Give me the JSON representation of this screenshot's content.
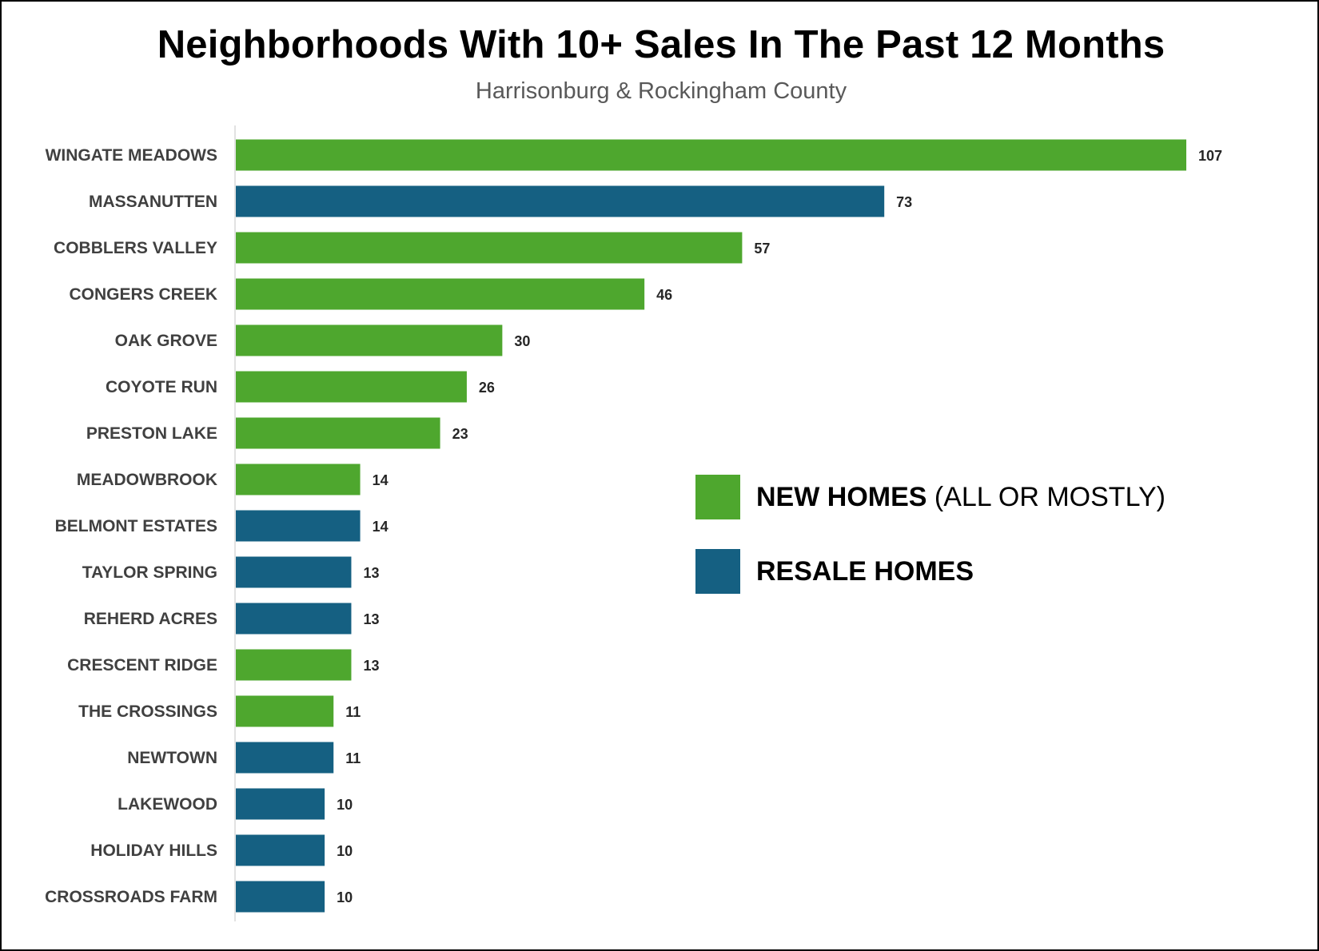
{
  "title": "Neighborhoods With 10+ Sales In The Past 12 Months",
  "subtitle": "Harrisonburg & Rockingham County",
  "legend": {
    "new": {
      "bold": "NEW HOMES",
      "normal": " (ALL OR MOSTLY)",
      "color": "#4EA72E"
    },
    "resale": {
      "bold": "RESALE HOMES",
      "normal": "",
      "color": "#156082"
    }
  },
  "chart_data": {
    "type": "bar",
    "orientation": "horizontal",
    "title": "Neighborhoods With 10+ Sales In The Past 12 Months",
    "subtitle": "Harrisonburg & Rockingham County",
    "xlabel": "",
    "ylabel": "",
    "xlim": [
      0,
      107
    ],
    "grid": false,
    "legend_position": "right-middle",
    "categories": [
      "WINGATE MEADOWS",
      "MASSANUTTEN",
      "COBBLERS VALLEY",
      "CONGERS CREEK",
      "OAK GROVE",
      "COYOTE RUN",
      "PRESTON LAKE",
      "MEADOWBROOK",
      "BELMONT ESTATES",
      "TAYLOR SPRING",
      "REHERD ACRES",
      "CRESCENT RIDGE",
      "THE CROSSINGS",
      "NEWTOWN",
      "LAKEWOOD",
      "HOLIDAY HILLS",
      "CROSSROADS FARM"
    ],
    "values": [
      107,
      73,
      57,
      46,
      30,
      26,
      23,
      14,
      14,
      13,
      13,
      13,
      11,
      11,
      10,
      10,
      10
    ],
    "types": [
      "new",
      "resale",
      "new",
      "new",
      "new",
      "new",
      "new",
      "new",
      "resale",
      "resale",
      "resale",
      "new",
      "new",
      "resale",
      "resale",
      "resale",
      "resale"
    ],
    "series": [
      {
        "name": "NEW HOMES (ALL OR MOSTLY)",
        "color": "#4EA72E"
      },
      {
        "name": "RESALE HOMES",
        "color": "#156082"
      }
    ]
  }
}
